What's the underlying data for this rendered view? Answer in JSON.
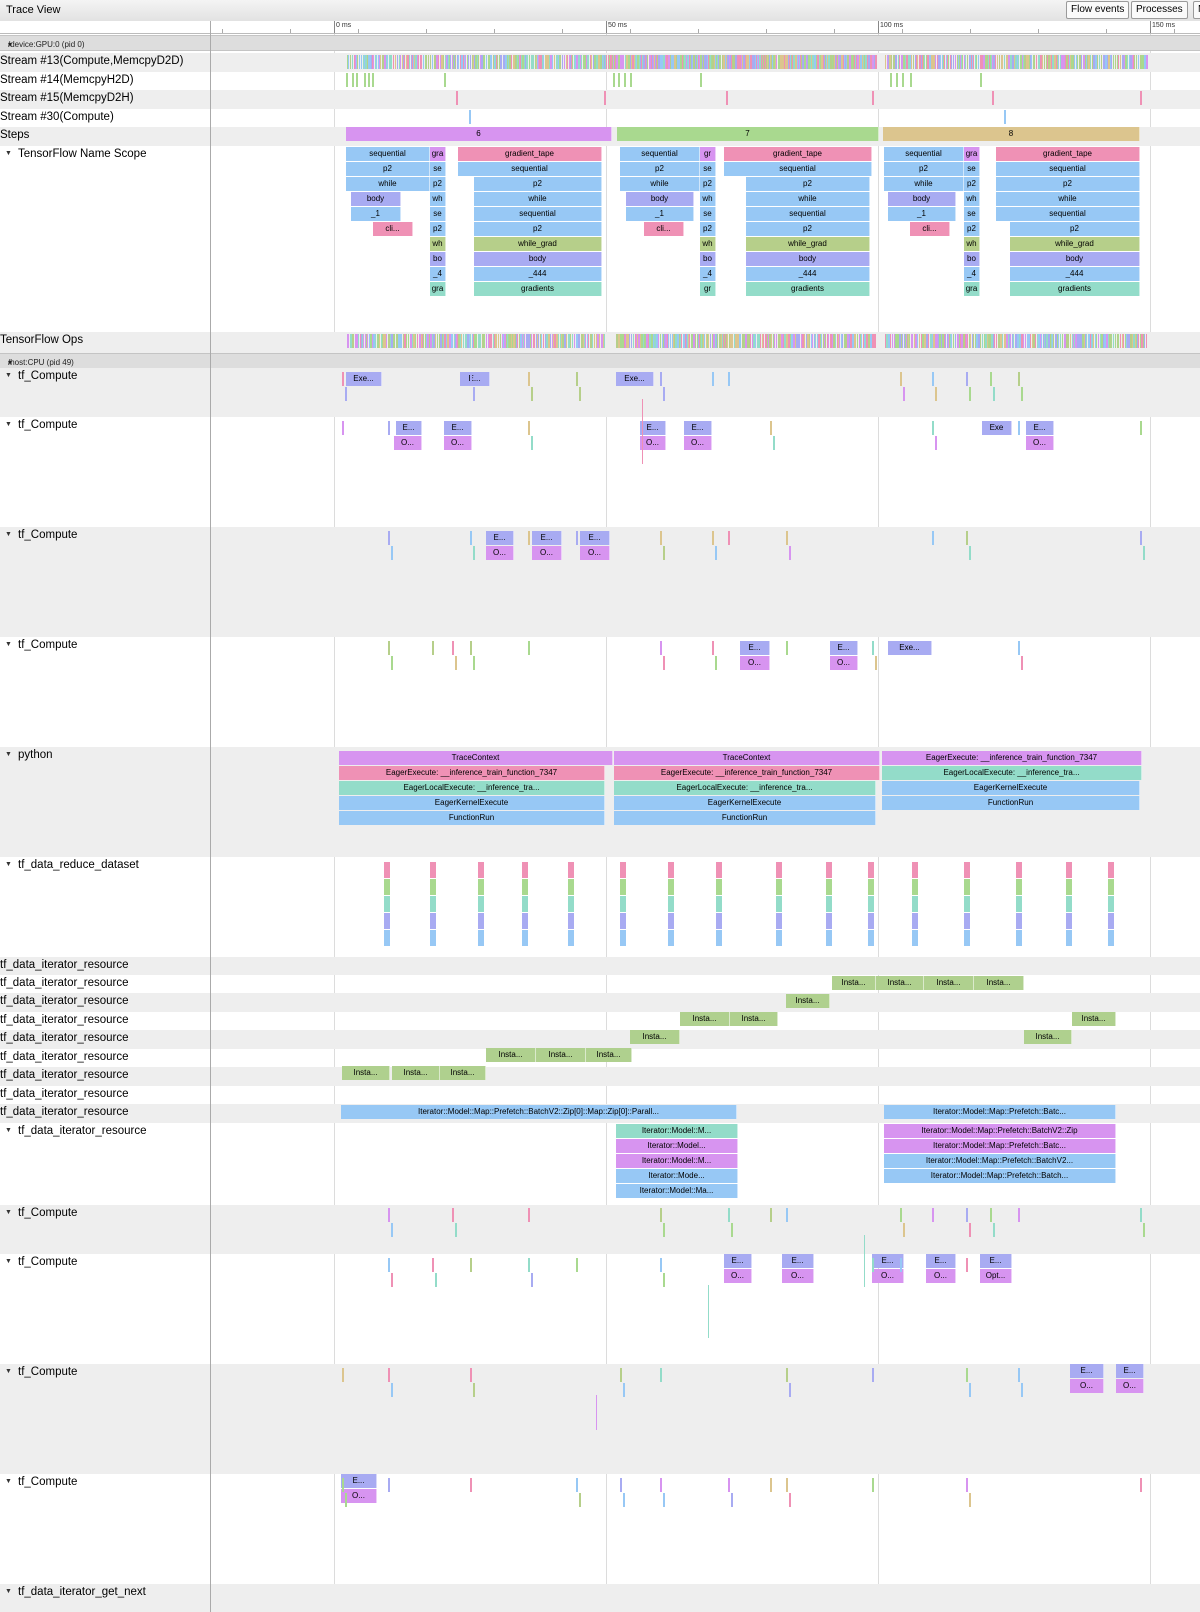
{
  "toolbar": {
    "title": "Trace View",
    "buttons": [
      "Flow events",
      "Processes",
      "M"
    ]
  },
  "ruler": {
    "labels": [
      "0 ms",
      "50 ms",
      "100 ms",
      "150 ms"
    ]
  },
  "colors": {
    "purple": "#d794f0",
    "green": "#a9d98f",
    "tan": "#dcc58e",
    "blue": "#97c8f5",
    "pink": "#ef91b5",
    "lavender": "#a8abf2",
    "teal": "#93dcc9",
    "olive": "#b6cf8a",
    "iter": "#afd08e"
  },
  "processes": [
    {
      "name": "/device:GPU:0 (pid 0)"
    },
    {
      "name": "/host:CPU (pid 49)"
    }
  ],
  "rows": [
    "Stream #13(Compute,MemcpyD2D)",
    "Stream #14(MemcpyH2D)",
    "Stream #15(MemcpyD2H)",
    "Stream #30(Compute)",
    "Steps",
    "TensorFlow Name Scope",
    "TensorFlow Ops",
    "tf_Compute",
    "tf_Compute",
    "tf_Compute",
    "tf_Compute",
    "python",
    "tf_data_reduce_dataset",
    "tf_data_iterator_resource",
    "tf_data_iterator_resource",
    "tf_data_iterator_resource",
    "tf_data_iterator_resource",
    "tf_data_iterator_resource",
    "tf_data_iterator_resource",
    "tf_data_iterator_resource",
    "tf_data_iterator_resource",
    "tf_data_iterator_resource",
    "tf_data_iterator_resource",
    "tf_Compute",
    "tf_Compute",
    "tf_Compute",
    "tf_Compute",
    "tf_data_iterator_get_next"
  ],
  "slices": [
    [
      "6",
      "purple"
    ],
    [
      "7",
      "green"
    ],
    [
      "8",
      "tan"
    ],
    [
      "sequential",
      "blue"
    ],
    [
      "gra",
      "purple"
    ],
    [
      "gradient_tape",
      "pink"
    ],
    [
      "p2",
      "blue"
    ],
    [
      "se",
      "blue"
    ],
    [
      "sequential",
      "blue"
    ],
    [
      "while",
      "blue"
    ],
    [
      "p2",
      "blue"
    ],
    [
      "p2",
      "blue"
    ],
    [
      "body",
      "lavender"
    ],
    [
      "wh",
      "blue"
    ],
    [
      "while",
      "blue"
    ],
    [
      "_1",
      "blue"
    ],
    [
      "se",
      "blue"
    ],
    [
      "sequential",
      "blue"
    ],
    [
      "cli...",
      "pink"
    ],
    [
      "p2",
      "blue"
    ],
    [
      "p2",
      "blue"
    ],
    [
      "wh",
      "olive"
    ],
    [
      "while_grad",
      "olive"
    ],
    [
      "bo",
      "lavender"
    ],
    [
      "body",
      "lavender"
    ],
    [
      "_4",
      "blue"
    ],
    [
      "_444",
      "blue"
    ],
    [
      "gra",
      "teal"
    ],
    [
      "gradients",
      "teal"
    ],
    [
      "sequential",
      "blue"
    ],
    [
      "gr",
      "purple"
    ],
    [
      "gradient_tape",
      "pink"
    ],
    [
      "p2",
      "blue"
    ],
    [
      "se",
      "blue"
    ],
    [
      "sequential",
      "blue"
    ],
    [
      "while",
      "blue"
    ],
    [
      "p2",
      "blue"
    ],
    [
      "p2",
      "blue"
    ],
    [
      "body",
      "lavender"
    ],
    [
      "wh",
      "blue"
    ],
    [
      "while",
      "blue"
    ],
    [
      "_1",
      "blue"
    ],
    [
      "se",
      "blue"
    ],
    [
      "sequential",
      "blue"
    ],
    [
      "cli...",
      "pink"
    ],
    [
      "p2",
      "blue"
    ],
    [
      "p2",
      "blue"
    ],
    [
      "wh",
      "olive"
    ],
    [
      "while_grad",
      "olive"
    ],
    [
      "bo",
      "lavender"
    ],
    [
      "body",
      "lavender"
    ],
    [
      "_4",
      "blue"
    ],
    [
      "_444",
      "blue"
    ],
    [
      "gr",
      "teal"
    ],
    [
      "gradients",
      "teal"
    ],
    [
      "sequential",
      "blue"
    ],
    [
      "gra",
      "purple"
    ],
    [
      "gradient_tape",
      "pink"
    ],
    [
      "p2",
      "blue"
    ],
    [
      "se",
      "blue"
    ],
    [
      "sequential",
      "blue"
    ],
    [
      "while",
      "blue"
    ],
    [
      "p2",
      "blue"
    ],
    [
      "p2",
      "blue"
    ],
    [
      "body",
      "lavender"
    ],
    [
      "wh",
      "blue"
    ],
    [
      "while",
      "blue"
    ],
    [
      "_1",
      "blue"
    ],
    [
      "se",
      "blue"
    ],
    [
      "sequential",
      "blue"
    ],
    [
      "cli...",
      "pink"
    ],
    [
      "p2",
      "blue"
    ],
    [
      "p2",
      "blue"
    ],
    [
      "wh",
      "olive"
    ],
    [
      "while_grad",
      "olive"
    ],
    [
      "bo",
      "lavender"
    ],
    [
      "body",
      "lavender"
    ],
    [
      "_4",
      "blue"
    ],
    [
      "_444",
      "blue"
    ],
    [
      "gra",
      "teal"
    ],
    [
      "gradients",
      "teal"
    ],
    [
      "Exe...",
      "lavender"
    ],
    [
      "E...",
      "lavender"
    ],
    [
      "Exe...",
      "lavender"
    ],
    [
      "E...",
      "lavender"
    ],
    [
      "O...",
      "purple"
    ],
    [
      "E...",
      "lavender"
    ],
    [
      "O...",
      "purple"
    ],
    [
      "E...",
      "lavender"
    ],
    [
      "O...",
      "purple"
    ],
    [
      "E...",
      "lavender"
    ],
    [
      "O...",
      "purple"
    ],
    [
      "Exe",
      "lavender"
    ],
    [
      "E...",
      "lavender"
    ],
    [
      "O...",
      "purple"
    ],
    [
      "E...",
      "lavender"
    ],
    [
      "O...",
      "purple"
    ],
    [
      "E...",
      "lavender"
    ],
    [
      "O...",
      "purple"
    ],
    [
      "E...",
      "lavender"
    ],
    [
      "O...",
      "purple"
    ],
    [
      "E...",
      "lavender"
    ],
    [
      "O...",
      "purple"
    ],
    [
      "E...",
      "lavender"
    ],
    [
      "O...",
      "purple"
    ],
    [
      "Exe...",
      "lavender"
    ],
    [
      "TraceContext",
      "purple"
    ],
    [
      "TraceContext",
      "purple"
    ],
    [
      "EagerExecute: __inference_train_function_7347",
      "purple"
    ],
    [
      "EagerExecute: __inference_train_function_7347",
      "pink"
    ],
    [
      "EagerExecute: __inference_train_function_7347",
      "pink"
    ],
    [
      "EagerLocalExecute: __inference_tra...",
      "teal"
    ],
    [
      "EagerLocalExecute: __inference_tra...",
      "teal"
    ],
    [
      "EagerLocalExecute: __inference_tra...",
      "teal"
    ],
    [
      "EagerKernelExecute",
      "blue"
    ],
    [
      "EagerKernelExecute",
      "blue"
    ],
    [
      "EagerKernelExecute",
      "blue"
    ],
    [
      "FunctionRun",
      "blue"
    ],
    [
      "FunctionRun",
      "blue"
    ],
    [
      "FunctionRun",
      "blue"
    ],
    [
      "Insta...",
      "iter"
    ],
    [
      "Insta...",
      "iter"
    ],
    [
      "Insta...",
      "iter"
    ],
    [
      "Insta...",
      "iter"
    ],
    [
      "Insta...",
      "iter"
    ],
    [
      "Insta...",
      "iter"
    ],
    [
      "Insta...",
      "iter"
    ],
    [
      "Insta...",
      "iter"
    ],
    [
      "Insta...",
      "iter"
    ],
    [
      "Insta...",
      "iter"
    ],
    [
      "Insta...",
      "iter"
    ],
    [
      "Insta...",
      "iter"
    ],
    [
      "Insta...",
      "iter"
    ],
    [
      "Insta...",
      "iter"
    ],
    [
      "Insta...",
      "iter"
    ],
    [
      "Insta...",
      "iter"
    ],
    [
      "Iterator::Model::Map::Prefetch::BatchV2::Zip[0]::Map::Zip[0]::Parall...",
      "blue"
    ],
    [
      "Iterator::Model::Map::Prefetch::Batc...",
      "blue"
    ],
    [
      "Iterator::Model::M...",
      "teal"
    ],
    [
      "Iterator::Model::Map::Prefetch::BatchV2::Zip",
      "purple"
    ],
    [
      "Iterator::Model...",
      "purple"
    ],
    [
      "Iterator::Model::Map::Prefetch::Batc...",
      "purple"
    ],
    [
      "Iterator::Model::M...",
      "purple"
    ],
    [
      "Iterator::Model::Map::Prefetch::BatchV2...",
      "blue"
    ],
    [
      "Iterator::Mode...",
      "blue"
    ],
    [
      "Iterator::Model::Map::Prefetch::Batch...",
      "blue"
    ],
    [
      "Iterator::Model::Ma...",
      "blue"
    ],
    [
      "E...",
      "lavender"
    ],
    [
      "O...",
      "purple"
    ],
    [
      "E...",
      "lavender"
    ],
    [
      "O...",
      "purple"
    ],
    [
      "E...",
      "lavender"
    ],
    [
      "O...",
      "purple"
    ],
    [
      "E...",
      "lavender"
    ],
    [
      "O...",
      "purple"
    ],
    [
      "E...",
      "lavender"
    ],
    [
      "Opt...",
      "purple"
    ],
    [
      "E...",
      "lavender"
    ],
    [
      "O...",
      "purple"
    ],
    [
      "E...",
      "lavender"
    ],
    [
      "O...",
      "purple"
    ],
    [
      "E...",
      "lavender"
    ],
    [
      "O...",
      "purple"
    ]
  ]
}
